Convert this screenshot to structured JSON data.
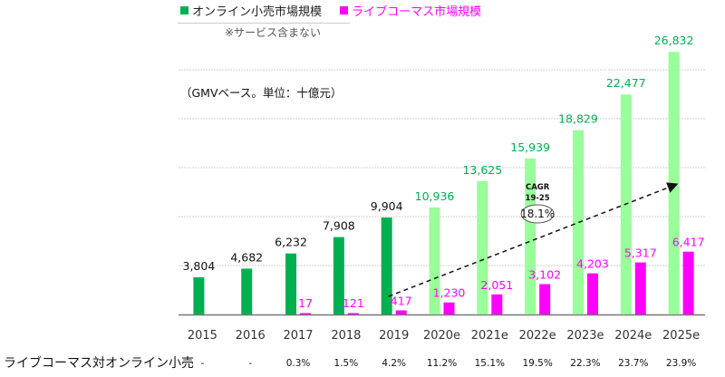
{
  "chart_data": {
    "type": "bar",
    "title": "",
    "legend_position": "top-left",
    "legend": [
      {
        "name": "オンライン小売市場規模",
        "color": "#00b050"
      },
      {
        "name": "ライブコーマス市場規模",
        "color": "#ff00ff"
      }
    ],
    "note": "※サービス含まない",
    "unit_label": "（GMVベース。単位：十億元）",
    "categories": [
      "2015",
      "2016",
      "2017",
      "2018",
      "2019",
      "2020e",
      "2021e",
      "2022e",
      "2023e",
      "2024e",
      "2025e"
    ],
    "series": [
      {
        "name": "オンライン小売市場規模",
        "values": [
          3804,
          4682,
          6232,
          7908,
          9904,
          10936,
          13625,
          15939,
          18829,
          22477,
          26832
        ],
        "labels": [
          "3,804",
          "4,682",
          "6,232",
          "7,908",
          "9,904",
          "10,936",
          "13,625",
          "15,939",
          "18,829",
          "22,477",
          "26,832"
        ],
        "color_actual": "#00b050",
        "color_estimate": "#99ff99",
        "label_color_actual": "#111111",
        "label_color_estimate": "#00b050"
      },
      {
        "name": "ライブコーマス市場規模",
        "values": [
          null,
          null,
          17,
          121,
          417,
          1230,
          2051,
          3102,
          4203,
          5317,
          6417
        ],
        "labels": [
          "",
          "",
          "17",
          "121",
          "417",
          "1,230",
          "2,051",
          "3,102",
          "4,203",
          "5,317",
          "6,417"
        ],
        "color": "#ff00ff"
      }
    ],
    "estimate_start_index": 5,
    "ylim": [
      0,
      30000
    ],
    "gridlines": [
      5000,
      10000,
      15000,
      20000,
      25000
    ],
    "grid": true,
    "annotation": {
      "title_line1": "CAGR",
      "title_line2": "19-25",
      "value": "18.1%",
      "arrow_from_category": "2019",
      "arrow_to_category": "2025e"
    },
    "ratio_row": {
      "label": "ライブコーマス対オンライン小売",
      "values": [
        "-",
        "-",
        "0.3%",
        "1.5%",
        "4.2%",
        "11.2%",
        "15.1%",
        "19.5%",
        "22.3%",
        "23.7%",
        "23.9%"
      ]
    }
  }
}
